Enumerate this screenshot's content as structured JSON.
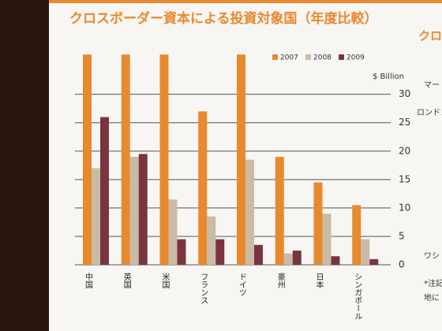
{
  "chart_data": {
    "type": "bar",
    "title": "クロスボーダー資本による投資対象国（年度比較）",
    "y_label": "$ Billion",
    "categories": [
      "中国",
      "英国",
      "米国",
      "フランス",
      "ドイツ",
      "豪州",
      "日本",
      "シンガポール"
    ],
    "series": [
      {
        "name": "2007",
        "color": "#e8892e",
        "values": [
          37,
          37,
          37,
          27,
          37,
          19,
          14.5,
          10.5
        ]
      },
      {
        "name": "2008",
        "color": "#c9bba6",
        "values": [
          17,
          19,
          11.5,
          8.5,
          18.5,
          2,
          9,
          4.5
        ]
      },
      {
        "name": "2009",
        "color": "#7a3440",
        "values": [
          26,
          19.5,
          4.5,
          4.5,
          3.5,
          2.5,
          1.5,
          1
        ]
      }
    ],
    "ylim": [
      0,
      38
    ],
    "yticks": [
      0,
      5,
      10,
      15,
      20,
      25,
      30
    ],
    "grid": true
  },
  "right_panel": {
    "title": "クロ",
    "lines": [
      "マー",
      "ロンドン",
      "ワシ",
      "*注記",
      "地に"
    ]
  }
}
